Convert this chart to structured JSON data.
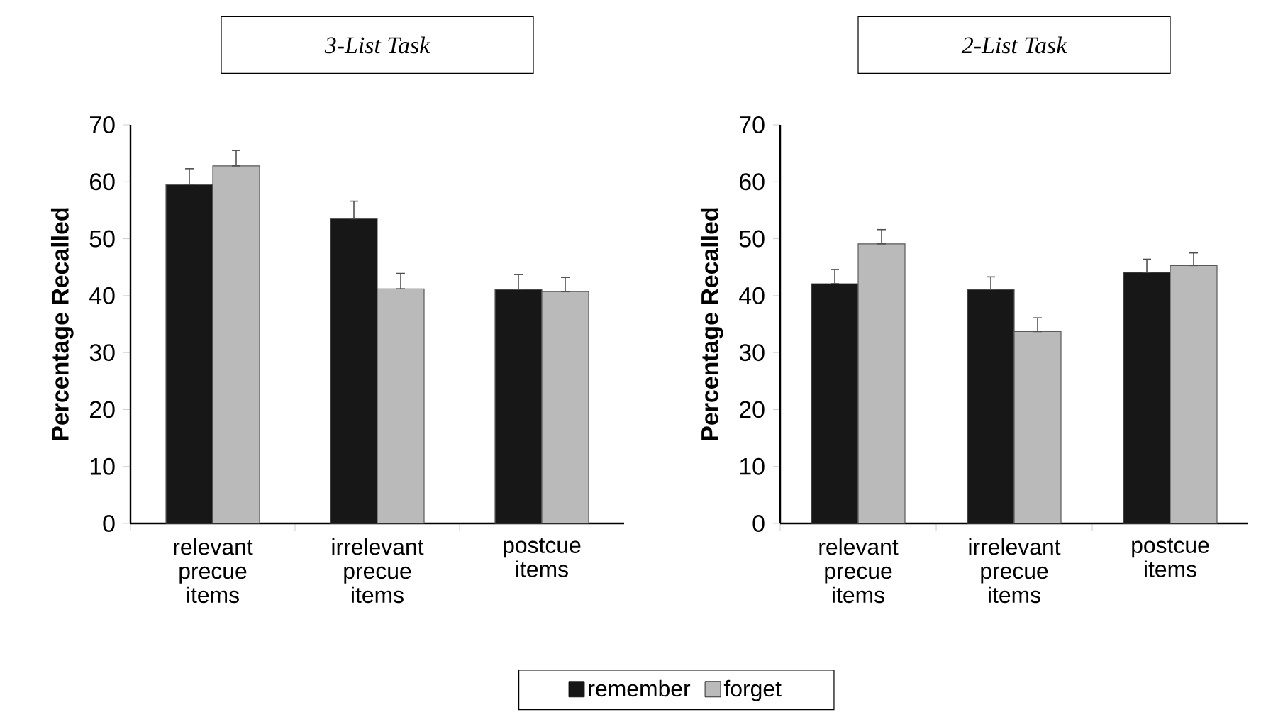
{
  "chart_data": [
    {
      "type": "bar",
      "title": "3-List Task",
      "ylabel": "Percentage Recalled",
      "categories": [
        "relevant precue items",
        "irrelevant precue items",
        "postcue items"
      ],
      "series": [
        {
          "name": "remember",
          "color": "#171717",
          "values": [
            59.5,
            53.5,
            41.1
          ],
          "errors": [
            [
              59.5,
              62.3
            ],
            [
              53.5,
              56.6
            ],
            [
              41.1,
              43.7
            ]
          ]
        },
        {
          "name": "forget",
          "color": "#bababa",
          "values": [
            62.8,
            41.2,
            40.7
          ],
          "errors": [
            [
              62.8,
              65.5
            ],
            [
              41.2,
              43.9
            ],
            [
              40.7,
              43.2
            ]
          ]
        }
      ],
      "ylim": [
        0,
        70
      ],
      "yticks": [
        0,
        10,
        20,
        30,
        40,
        50,
        60,
        70
      ],
      "legend": "bottom"
    },
    {
      "type": "bar",
      "title": "2-List Task",
      "ylabel": "Percentage Recalled",
      "categories": [
        "relevant precue items",
        "irrelevant precue items",
        "postcue items"
      ],
      "series": [
        {
          "color": "#171717",
          "values": [
            42.1,
            41.1,
            44.1
          ],
          "errors": [
            [
              42.1,
              44.6
            ],
            [
              41.1,
              43.3
            ],
            [
              44.1,
              46.4
            ]
          ]
        },
        {
          "color": "#bababa",
          "values": [
            49.1,
            33.7,
            45.3
          ],
          "errors": [
            [
              49.1,
              51.6
            ],
            [
              33.7,
              36.1
            ],
            [
              45.3,
              47.5
            ]
          ]
        }
      ],
      "ylim": [
        0,
        70
      ],
      "yticks": [
        0,
        10,
        20,
        30,
        40,
        50,
        60,
        70
      ]
    }
  ]
}
